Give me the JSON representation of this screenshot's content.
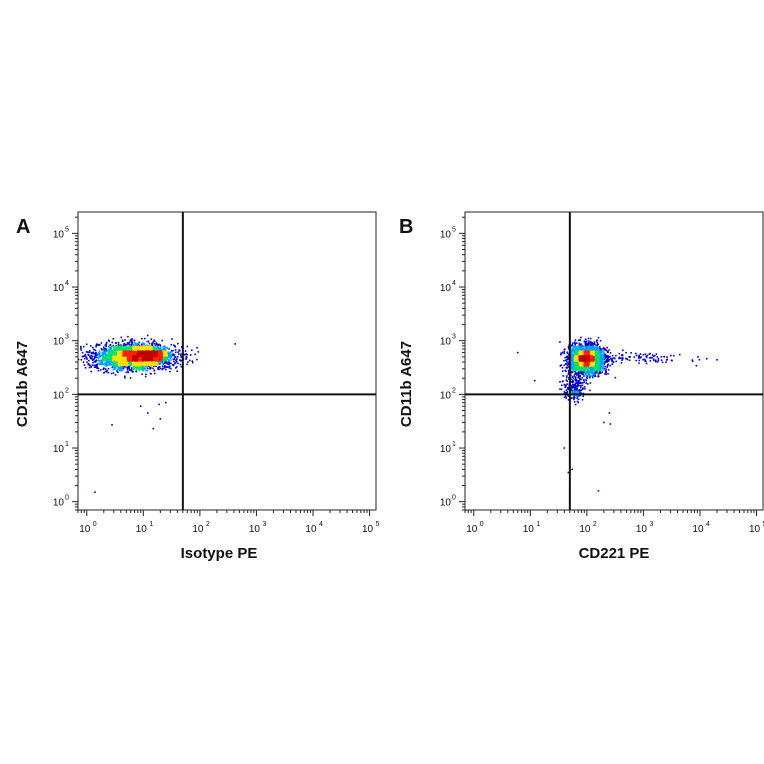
{
  "chart_data": [
    {
      "panel_label": "A",
      "type": "scatter",
      "subtype": "flow-cytometry density dot plot",
      "xlabel": "Isotype PE",
      "ylabel": "CD11b A647",
      "xscale": "log",
      "yscale": "log",
      "xlim": [
        0.7,
        130000
      ],
      "ylim": [
        0.7,
        250000
      ],
      "x_ticks": [
        {
          "base": "10",
          "exp": "0",
          "value": 1
        },
        {
          "base": "10",
          "exp": "1",
          "value": 10
        },
        {
          "base": "10",
          "exp": "2",
          "value": 100
        },
        {
          "base": "10",
          "exp": "3",
          "value": 1000
        },
        {
          "base": "10",
          "exp": "4",
          "value": 10000
        },
        {
          "base": "10",
          "exp": "5",
          "value": 100000
        }
      ],
      "y_ticks": [
        {
          "base": "10",
          "exp": "0",
          "value": 1
        },
        {
          "base": "10",
          "exp": "1",
          "value": 10
        },
        {
          "base": "10",
          "exp": "2",
          "value": 100
        },
        {
          "base": "10",
          "exp": "3",
          "value": 1000
        },
        {
          "base": "10",
          "exp": "4",
          "value": 10000
        },
        {
          "base": "10",
          "exp": "5",
          "value": 100000
        }
      ],
      "quadrant_gate": {
        "x": 50,
        "y": 100
      },
      "populations": [
        {
          "center_x": 7,
          "center_y": 500,
          "spread_x_decades": 0.35,
          "spread_y_decades": 0.12,
          "count": 2600
        },
        {
          "center_x": 14,
          "center_y": 550,
          "spread_x_decades": 0.12,
          "spread_y_decades": 0.06,
          "count": 500
        }
      ],
      "sparse_events": [
        {
          "x": 1.4,
          "y": 1.5
        },
        {
          "x": 2.8,
          "y": 27
        },
        {
          "x": 12,
          "y": 45
        },
        {
          "x": 15,
          "y": 23
        },
        {
          "x": 20,
          "y": 35
        },
        {
          "x": 19,
          "y": 65
        },
        {
          "x": 25,
          "y": 70
        },
        {
          "x": 9,
          "y": 60
        },
        {
          "x": 60,
          "y": 780
        },
        {
          "x": 420,
          "y": 870
        }
      ],
      "colors": {
        "low": "#0000c8",
        "mid_low": "#00a0ff",
        "mid": "#00e070",
        "mid_high": "#ffe000",
        "high": "#ff2000",
        "peak": "#c00000"
      }
    },
    {
      "panel_label": "B",
      "type": "scatter",
      "subtype": "flow-cytometry density dot plot",
      "xlabel": "CD221 PE",
      "ylabel": "CD11b A647",
      "xscale": "log",
      "yscale": "log",
      "xlim": [
        0.7,
        130000
      ],
      "ylim": [
        0.7,
        250000
      ],
      "x_ticks": [
        {
          "base": "10",
          "exp": "0",
          "value": 1
        },
        {
          "base": "10",
          "exp": "1",
          "value": 10
        },
        {
          "base": "10",
          "exp": "2",
          "value": 100
        },
        {
          "base": "10",
          "exp": "3",
          "value": 1000
        },
        {
          "base": "10",
          "exp": "4",
          "value": 10000
        },
        {
          "base": "10",
          "exp": "5",
          "value": 100000
        }
      ],
      "y_ticks": [
        {
          "base": "10",
          "exp": "0",
          "value": 1
        },
        {
          "base": "10",
          "exp": "1",
          "value": 10
        },
        {
          "base": "10",
          "exp": "2",
          "value": 100
        },
        {
          "base": "10",
          "exp": "3",
          "value": 1000
        },
        {
          "base": "10",
          "exp": "4",
          "value": 10000
        },
        {
          "base": "10",
          "exp": "5",
          "value": 100000
        }
      ],
      "quadrant_gate": {
        "x": 50,
        "y": 100
      },
      "populations": [
        {
          "center_x": 100,
          "center_y": 450,
          "spread_x_decades": 0.16,
          "spread_y_decades": 0.13,
          "count": 2300
        },
        {
          "center_x": 95,
          "center_y": 470,
          "spread_x_decades": 0.06,
          "spread_y_decades": 0.05,
          "count": 600
        },
        {
          "center_x": 900,
          "center_y": 470,
          "spread_x_decades": 0.55,
          "spread_y_decades": 0.05,
          "count": 110
        },
        {
          "center_x": 60,
          "center_y": 130,
          "spread_x_decades": 0.1,
          "spread_y_decades": 0.12,
          "count": 220
        }
      ],
      "sparse_events": [
        {
          "x": 50,
          "y": 2.5
        },
        {
          "x": 47,
          "y": 3.5
        },
        {
          "x": 40,
          "y": 10
        },
        {
          "x": 55,
          "y": 4
        },
        {
          "x": 160,
          "y": 1.6
        },
        {
          "x": 200,
          "y": 30
        },
        {
          "x": 250,
          "y": 45
        },
        {
          "x": 260,
          "y": 28
        },
        {
          "x": 6,
          "y": 600
        },
        {
          "x": 12,
          "y": 180
        },
        {
          "x": 8000,
          "y": 100
        },
        {
          "x": 20000,
          "y": 440
        }
      ],
      "colors": {
        "low": "#0000c8",
        "mid_low": "#00a0ff",
        "mid": "#00e070",
        "mid_high": "#ffe000",
        "high": "#ff2000",
        "peak": "#c00000"
      }
    }
  ]
}
